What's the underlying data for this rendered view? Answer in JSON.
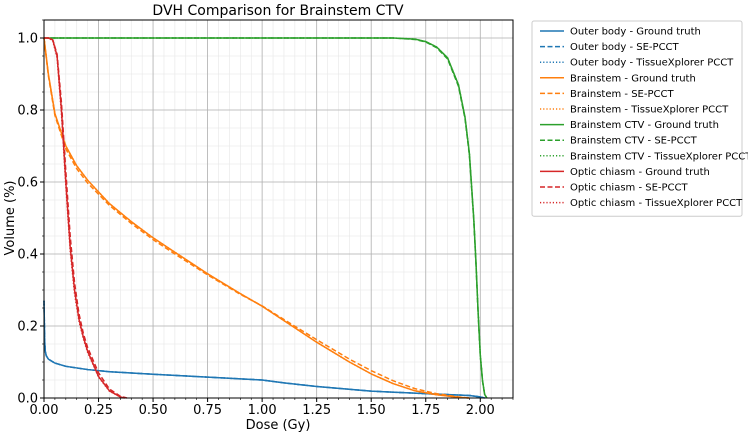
{
  "chart_data": {
    "type": "line",
    "title": "DVH Comparison for Brainstem CTV",
    "xlabel": "Dose (Gy)",
    "ylabel": "Volume (%)",
    "xlim": [
      0.0,
      2.15
    ],
    "ylim": [
      0.0,
      1.05
    ],
    "xticks": [
      "0.00",
      "0.25",
      "0.50",
      "0.75",
      "1.00",
      "1.25",
      "1.50",
      "1.75",
      "2.00"
    ],
    "yticks": [
      "0.0",
      "0.2",
      "0.4",
      "0.6",
      "0.8",
      "1.0"
    ],
    "grid": true,
    "legend_position": "outside-right",
    "series": [
      {
        "name": "Outer body - Ground truth",
        "color": "#1f77b4",
        "style": "solid",
        "x": [
          0.0,
          0.003,
          0.006,
          0.01,
          0.02,
          0.05,
          0.1,
          0.2,
          0.3,
          0.5,
          0.75,
          1.0,
          1.1,
          1.25,
          1.5,
          1.75,
          1.95,
          2.0,
          2.02
        ],
        "y": [
          0.27,
          0.16,
          0.13,
          0.118,
          0.108,
          0.097,
          0.088,
          0.079,
          0.073,
          0.066,
          0.058,
          0.05,
          0.042,
          0.032,
          0.019,
          0.012,
          0.007,
          0.003,
          0.0
        ]
      },
      {
        "name": "Outer body - SE-PCCT",
        "color": "#1f77b4",
        "style": "dashed",
        "x": [
          0.0,
          0.003,
          0.006,
          0.01,
          0.02,
          0.05,
          0.1,
          0.2,
          0.3,
          0.5,
          0.75,
          1.0,
          1.1,
          1.25,
          1.5,
          1.75,
          1.95,
          2.0,
          2.02
        ],
        "y": [
          0.27,
          0.16,
          0.13,
          0.118,
          0.108,
          0.097,
          0.088,
          0.079,
          0.073,
          0.066,
          0.058,
          0.05,
          0.042,
          0.032,
          0.019,
          0.012,
          0.007,
          0.003,
          0.0
        ]
      },
      {
        "name": "Outer body - TissueXplorer PCCT",
        "color": "#1f77b4",
        "style": "dotted",
        "x": [
          0.0,
          0.003,
          0.006,
          0.01,
          0.02,
          0.05,
          0.1,
          0.2,
          0.3,
          0.5,
          0.75,
          1.0,
          1.1,
          1.25,
          1.5,
          1.75,
          1.95,
          2.0,
          2.02
        ],
        "y": [
          0.27,
          0.16,
          0.13,
          0.118,
          0.108,
          0.097,
          0.088,
          0.079,
          0.073,
          0.066,
          0.058,
          0.05,
          0.042,
          0.032,
          0.019,
          0.012,
          0.007,
          0.003,
          0.0
        ]
      },
      {
        "name": "Brainstem - Ground truth",
        "color": "#ff7f0e",
        "style": "solid",
        "x": [
          0.0,
          0.02,
          0.05,
          0.1,
          0.15,
          0.2,
          0.3,
          0.4,
          0.5,
          0.6,
          0.75,
          0.9,
          1.0,
          1.1,
          1.25,
          1.4,
          1.5,
          1.6,
          1.7,
          1.8,
          1.9,
          1.95
        ],
        "y": [
          1.0,
          0.9,
          0.79,
          0.7,
          0.645,
          0.605,
          0.54,
          0.49,
          0.445,
          0.405,
          0.345,
          0.29,
          0.255,
          0.215,
          0.155,
          0.1,
          0.067,
          0.04,
          0.02,
          0.009,
          0.002,
          0.0
        ]
      },
      {
        "name": "Brainstem - SE-PCCT",
        "color": "#ff7f0e",
        "style": "dashed",
        "x": [
          0.0,
          0.02,
          0.05,
          0.1,
          0.15,
          0.2,
          0.3,
          0.4,
          0.5,
          0.6,
          0.75,
          0.9,
          1.0,
          1.1,
          1.25,
          1.4,
          1.5,
          1.6,
          1.7,
          1.8,
          1.9,
          1.95
        ],
        "y": [
          1.0,
          0.895,
          0.785,
          0.692,
          0.637,
          0.597,
          0.535,
          0.485,
          0.44,
          0.4,
          0.342,
          0.288,
          0.256,
          0.218,
          0.162,
          0.108,
          0.076,
          0.048,
          0.026,
          0.012,
          0.003,
          0.0
        ]
      },
      {
        "name": "Brainstem - TissueXplorer PCCT",
        "color": "#ff7f0e",
        "style": "dotted",
        "x": [
          0.0,
          0.02,
          0.05,
          0.1,
          0.15,
          0.2,
          0.3,
          0.4,
          0.5,
          0.6,
          0.75,
          0.9,
          1.0,
          1.1,
          1.25,
          1.4,
          1.5,
          1.6,
          1.7,
          1.8,
          1.9,
          1.95
        ],
        "y": [
          1.0,
          0.9,
          0.79,
          0.7,
          0.645,
          0.605,
          0.54,
          0.49,
          0.445,
          0.405,
          0.345,
          0.29,
          0.255,
          0.215,
          0.155,
          0.1,
          0.067,
          0.04,
          0.02,
          0.009,
          0.002,
          0.0
        ]
      },
      {
        "name": "Brainstem CTV - Ground truth",
        "color": "#2ca02c",
        "style": "solid",
        "x": [
          0.0,
          1.0,
          1.5,
          1.6,
          1.7,
          1.75,
          1.8,
          1.85,
          1.9,
          1.93,
          1.95,
          1.97,
          1.98,
          1.99,
          2.0,
          2.01,
          2.02,
          2.03
        ],
        "y": [
          1.0,
          1.0,
          1.0,
          1.0,
          0.997,
          0.99,
          0.975,
          0.945,
          0.87,
          0.78,
          0.68,
          0.5,
          0.38,
          0.24,
          0.12,
          0.05,
          0.01,
          0.0
        ]
      },
      {
        "name": "Brainstem CTV - SE-PCCT",
        "color": "#2ca02c",
        "style": "dashed",
        "x": [
          0.0,
          1.0,
          1.5,
          1.6,
          1.7,
          1.75,
          1.8,
          1.85,
          1.9,
          1.93,
          1.95,
          1.97,
          1.98,
          1.99,
          2.0,
          2.01,
          2.02,
          2.03
        ],
        "y": [
          1.0,
          1.0,
          1.0,
          1.0,
          0.996,
          0.989,
          0.973,
          0.942,
          0.866,
          0.776,
          0.675,
          0.495,
          0.375,
          0.236,
          0.118,
          0.048,
          0.01,
          0.0
        ]
      },
      {
        "name": "Brainstem CTV - TissueXplorer PCCT",
        "color": "#2ca02c",
        "style": "dotted",
        "x": [
          0.0,
          1.0,
          1.5,
          1.6,
          1.7,
          1.75,
          1.8,
          1.85,
          1.9,
          1.93,
          1.95,
          1.97,
          1.98,
          1.99,
          2.0,
          2.01,
          2.02,
          2.03
        ],
        "y": [
          1.0,
          1.0,
          1.0,
          1.0,
          0.997,
          0.99,
          0.975,
          0.945,
          0.87,
          0.78,
          0.68,
          0.5,
          0.38,
          0.24,
          0.12,
          0.05,
          0.01,
          0.0
        ]
      },
      {
        "name": "Optic chiasm - Ground truth",
        "color": "#d62728",
        "style": "solid",
        "x": [
          0.0,
          0.02,
          0.04,
          0.06,
          0.08,
          0.1,
          0.12,
          0.14,
          0.16,
          0.18,
          0.2,
          0.25,
          0.3,
          0.35,
          0.37
        ],
        "y": [
          1.0,
          1.0,
          0.995,
          0.95,
          0.8,
          0.6,
          0.42,
          0.3,
          0.22,
          0.17,
          0.13,
          0.06,
          0.02,
          0.003,
          0.0
        ]
      },
      {
        "name": "Optic chiasm - SE-PCCT",
        "color": "#d62728",
        "style": "dashed",
        "x": [
          0.0,
          0.02,
          0.04,
          0.06,
          0.08,
          0.1,
          0.12,
          0.14,
          0.16,
          0.18,
          0.2,
          0.25,
          0.3,
          0.35,
          0.38
        ],
        "y": [
          1.0,
          1.0,
          0.995,
          0.955,
          0.82,
          0.63,
          0.45,
          0.32,
          0.235,
          0.18,
          0.14,
          0.07,
          0.025,
          0.005,
          0.0
        ]
      },
      {
        "name": "Optic chiasm - TissueXplorer PCCT",
        "color": "#d62728",
        "style": "dotted",
        "x": [
          0.0,
          0.02,
          0.04,
          0.06,
          0.08,
          0.1,
          0.12,
          0.14,
          0.16,
          0.18,
          0.2,
          0.25,
          0.3,
          0.35,
          0.37
        ],
        "y": [
          1.0,
          1.0,
          0.993,
          0.945,
          0.79,
          0.59,
          0.41,
          0.29,
          0.215,
          0.165,
          0.127,
          0.058,
          0.019,
          0.003,
          0.0
        ]
      }
    ]
  }
}
